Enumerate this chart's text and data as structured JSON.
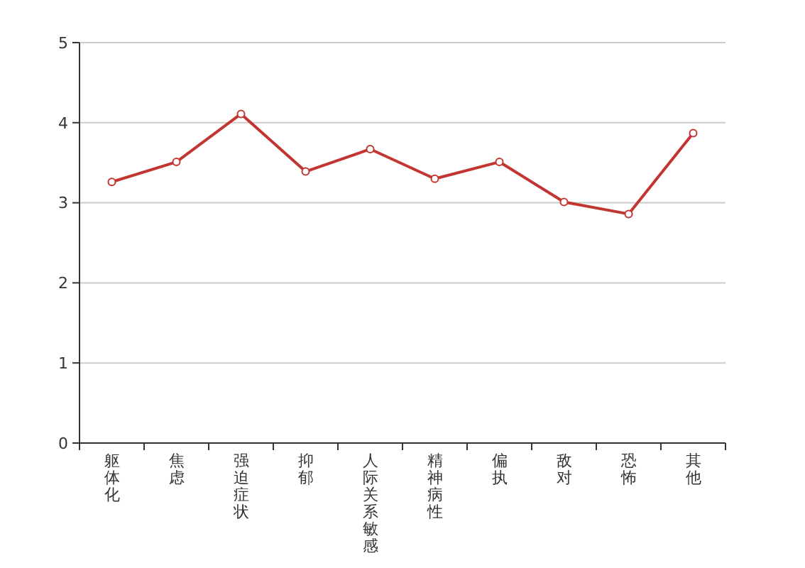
{
  "chart_data": {
    "type": "line",
    "categories": [
      "躯体化",
      "焦虑",
      "强迫症状",
      "抑郁",
      "人际关系敏感",
      "精神病性",
      "偏执",
      "敌对",
      "恐怖",
      "其他"
    ],
    "series": [
      {
        "color": "#c23531",
        "values": [
          3.26,
          3.51,
          4.11,
          3.39,
          3.67,
          3.3,
          3.51,
          3.01,
          2.86,
          3.87
        ]
      }
    ],
    "ylim": [
      0,
      5
    ],
    "yticks": [
      0,
      1,
      2,
      3,
      4,
      5
    ],
    "grid": "y",
    "marker": "circle",
    "line_style": "solid"
  }
}
